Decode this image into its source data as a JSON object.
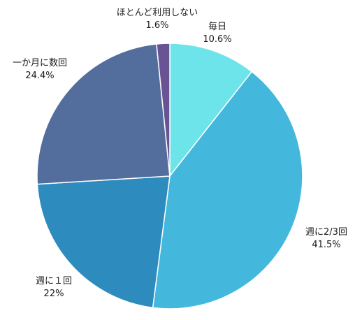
{
  "chart_data": {
    "type": "pie",
    "title": "",
    "slices": [
      {
        "label": "毎日",
        "value": 10.6,
        "value_label": "10.6%",
        "color": "#6ce4e9"
      },
      {
        "label": "週に2/3回",
        "value": 41.5,
        "value_label": "41.5%",
        "color": "#44b8dc"
      },
      {
        "label": "週に１回",
        "value": 22,
        "value_label": "22%",
        "color": "#2e8bbd"
      },
      {
        "label": "一か月に数回",
        "value": 24.4,
        "value_label": "24.4%",
        "color": "#536e9d"
      },
      {
        "label": "ほとんど利用しない",
        "value": 1.6,
        "value_label": "1.6%",
        "color": "#6a5392"
      }
    ],
    "start": "12 o'clock",
    "direction": "clockwise",
    "legend": "none"
  }
}
